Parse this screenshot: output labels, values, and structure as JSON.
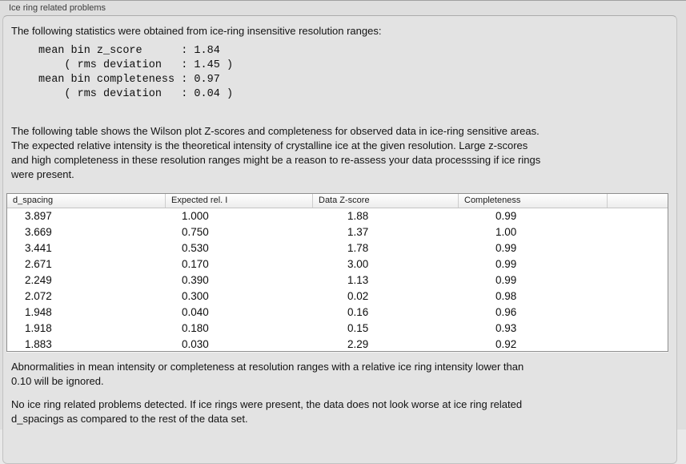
{
  "panel": {
    "title": "Ice ring related problems",
    "intro": "The following statistics were obtained from ice-ring insensitive resolution ranges:",
    "stats_block": "mean bin z_score      : 1.84\n    ( rms deviation   : 1.45 )\nmean bin completeness : 0.97\n    ( rms deviation   : 0.04 )",
    "stats": {
      "mean_bin_z_score": "1.84",
      "z_score_rms_deviation": "1.45",
      "mean_bin_completeness": "0.97",
      "completeness_rms_deviation": "0.04"
    },
    "table_description": "The following table shows the Wilson plot Z-scores and completeness for observed data in ice-ring sensitive areas.\nThe expected relative intensity is the theoretical intensity of crystalline ice at the given resolution. Large z-scores\nand high completeness in these resolution ranges might be a reason to re-assess your data processsing if ice rings\nwere present.",
    "ignore_note": "Abnormalities in mean intensity or completeness at resolution ranges with a relative ice ring intensity lower than\n0.10 will be ignored.",
    "conclusion": "No ice ring related problems detected. If ice rings were present, the data does not look worse at ice ring related\nd_spacings as compared to the rest of the data set."
  },
  "table": {
    "columns": [
      {
        "label": "d_spacing"
      },
      {
        "label": "Expected rel. I"
      },
      {
        "label": "Data Z-score"
      },
      {
        "label": "Completeness"
      }
    ],
    "rows": [
      [
        "3.897",
        "1.000",
        "1.88",
        "0.99"
      ],
      [
        "3.669",
        "0.750",
        "1.37",
        "1.00"
      ],
      [
        "3.441",
        "0.530",
        "1.78",
        "0.99"
      ],
      [
        "2.671",
        "0.170",
        "3.00",
        "0.99"
      ],
      [
        "2.249",
        "0.390",
        "1.13",
        "0.99"
      ],
      [
        "2.072",
        "0.300",
        "0.02",
        "0.98"
      ],
      [
        "1.948",
        "0.040",
        "0.16",
        "0.96"
      ],
      [
        "1.918",
        "0.180",
        "0.15",
        "0.93"
      ],
      [
        "1.883",
        "0.030",
        "2.29",
        "0.92"
      ]
    ]
  }
}
